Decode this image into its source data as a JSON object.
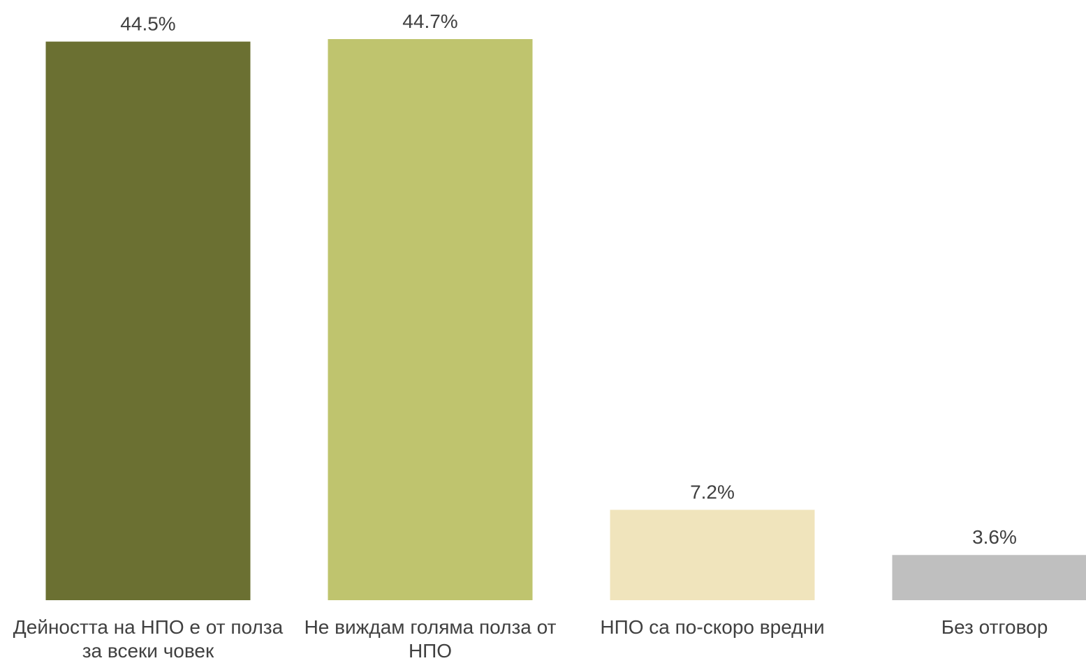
{
  "chart_data": {
    "type": "bar",
    "categories": [
      "Дейността на НПО е от полза за всеки човек",
      "Не виждам голяма полза от НПО",
      "НПО са по-скоро вредни",
      "Без отговор"
    ],
    "values": [
      44.5,
      44.7,
      7.2,
      3.6
    ],
    "value_labels": [
      "44.5%",
      "44.7%",
      "7.2%",
      "3.6%"
    ],
    "colors": [
      "#6b7032",
      "#bfc46e",
      "#f0e4bc",
      "#bfbfbf"
    ],
    "title": "",
    "xlabel": "",
    "ylabel": "",
    "ylim": [
      0,
      44.7
    ],
    "grid": false,
    "legend": "none"
  }
}
